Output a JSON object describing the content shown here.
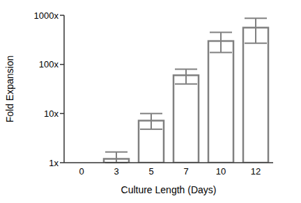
{
  "chart_data": {
    "type": "bar",
    "categories": [
      "0",
      "3",
      "5",
      "7",
      "10",
      "12"
    ],
    "values": [
      1,
      1.2,
      7.2,
      60,
      300,
      560
    ],
    "errors": [
      null,
      [
        1.0,
        1.65
      ],
      [
        4.8,
        10
      ],
      [
        40,
        80
      ],
      [
        175,
        450
      ],
      [
        270,
        870
      ]
    ],
    "color": "#808080",
    "xlabel": "Culture Length (Days)",
    "ylabel": "Fold Expansion",
    "log": "y",
    "ylim": [
      1,
      1000
    ],
    "yticks": [
      {
        "value": 1,
        "label": "1x"
      },
      {
        "value": 10,
        "label": "10x"
      },
      {
        "value": 100,
        "label": "100x"
      },
      {
        "value": 1000,
        "label": "1000x"
      }
    ],
    "grid": false
  }
}
